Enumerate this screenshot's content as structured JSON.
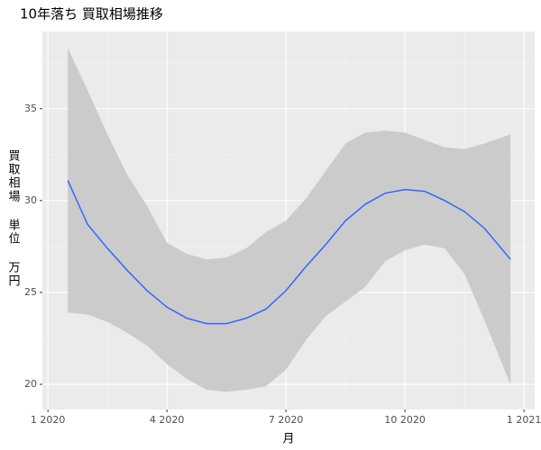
{
  "chart_data": {
    "type": "line",
    "title": "10年落ち 買取相場推移",
    "x_label": "月",
    "y_label": "買取相場 単位 万円",
    "x": [
      0.5,
      1,
      1.5,
      2,
      2.5,
      3,
      3.5,
      4,
      4.5,
      5,
      5.5,
      6,
      6.5,
      7,
      7.5,
      8,
      8.5,
      9,
      9.5,
      10,
      10.5,
      11,
      11.66
    ],
    "series": [
      {
        "color": "#3366ff",
        "values": [
          31.1,
          28.7,
          27.4,
          26.2,
          25.1,
          24.2,
          23.6,
          23.3,
          23.3,
          23.6,
          24.1,
          25.1,
          26.4,
          27.6,
          28.9,
          29.8,
          30.4,
          30.6,
          30.5,
          30.0,
          29.4,
          28.5,
          26.8
        ],
        "lower": [
          23.9,
          23.8,
          23.4,
          22.8,
          22.1,
          21.1,
          20.3,
          19.7,
          19.6,
          19.7,
          19.9,
          20.8,
          22.4,
          23.7,
          24.5,
          25.3,
          26.7,
          27.3,
          27.6,
          27.4,
          26.0,
          23.5,
          20.0
        ],
        "upper": [
          38.3,
          36.0,
          33.6,
          31.4,
          29.7,
          27.7,
          27.1,
          26.8,
          26.9,
          27.4,
          28.3,
          28.9,
          30.1,
          31.6,
          33.1,
          33.7,
          33.8,
          33.7,
          33.3,
          32.9,
          32.8,
          33.1,
          33.6
        ],
        "band_color": "#cbcbcb"
      }
    ],
    "xlim": [
      -0.14,
      12.27
    ],
    "xticks": [
      {
        "value": 0,
        "label": "1 2020"
      },
      {
        "value": 3,
        "label": "4 2020"
      },
      {
        "value": 6,
        "label": "7 2020"
      },
      {
        "value": 9,
        "label": "10 2020"
      },
      {
        "value": 12,
        "label": "1 2021"
      }
    ],
    "ylim": [
      18.63,
      39.2
    ],
    "yticks": [
      20,
      25,
      30,
      35
    ],
    "grid": true,
    "panel_color": "#ebebeb"
  }
}
